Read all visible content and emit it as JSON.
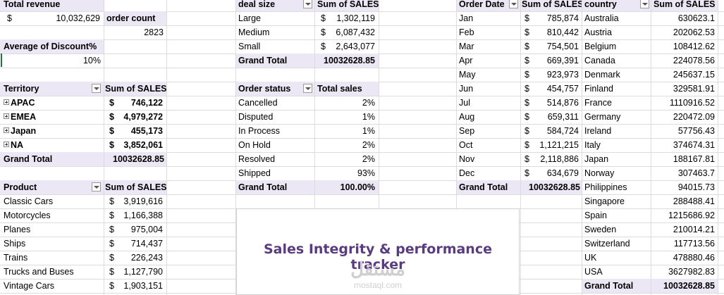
{
  "kpis": {
    "revenue_label": "Total revenue",
    "currency": "$",
    "revenue_value": "10,032,629",
    "order_count_label": "order count",
    "order_count_value": "2823",
    "discount_label": "Average of Discount%",
    "discount_value": "10%"
  },
  "territory": {
    "col1": "Territory",
    "col2": "Sum of SALES",
    "rows": [
      {
        "name": "APAC",
        "cur": "$",
        "value": "746,122"
      },
      {
        "name": "EMEA",
        "cur": "$",
        "value": "4,979,272"
      },
      {
        "name": "Japan",
        "cur": "$",
        "value": "455,173"
      },
      {
        "name": "NA",
        "cur": "$",
        "value": "3,852,061"
      }
    ],
    "total_label": "Grand Total",
    "total_value": "10032628.85"
  },
  "product": {
    "col1": "Product",
    "col2": "Sum of SALES",
    "rows": [
      {
        "name": "Classic Cars",
        "cur": "$",
        "value": "3,919,616"
      },
      {
        "name": "Motorcycles",
        "cur": "$",
        "value": "1,166,388"
      },
      {
        "name": "Planes",
        "cur": "$",
        "value": "975,004"
      },
      {
        "name": "Ships",
        "cur": "$",
        "value": "714,437"
      },
      {
        "name": "Trains",
        "cur": "$",
        "value": "226,243"
      },
      {
        "name": "Trucks and Buses",
        "cur": "$",
        "value": "1,127,790"
      },
      {
        "name": "Vintage Cars",
        "cur": "$",
        "value": "1,903,151"
      }
    ]
  },
  "deal_size": {
    "col1": "deal size",
    "col2": "Sum of SALES",
    "rows": [
      {
        "name": "Large",
        "cur": "$",
        "value": "1,302,119"
      },
      {
        "name": "Medium",
        "cur": "$",
        "value": "6,087,432"
      },
      {
        "name": "Small",
        "cur": "$",
        "value": "2,643,077"
      }
    ],
    "total_label": "Grand Total",
    "total_value": "10032628.85"
  },
  "order_status": {
    "col1": "Order status",
    "col2": "Total sales",
    "rows": [
      {
        "name": "Cancelled",
        "value": "2%"
      },
      {
        "name": "Disputed",
        "value": "1%"
      },
      {
        "name": "In Process",
        "value": "1%"
      },
      {
        "name": "On Hold",
        "value": "2%"
      },
      {
        "name": "Resolved",
        "value": "2%"
      },
      {
        "name": "Shipped",
        "value": "93%"
      }
    ],
    "total_label": "Grand Total",
    "total_value": "100.00%"
  },
  "order_date": {
    "col1": "Order Date",
    "col2": "Sum of SALES",
    "rows": [
      {
        "name": "Jan",
        "cur": "$",
        "value": "785,874"
      },
      {
        "name": "Feb",
        "cur": "$",
        "value": "810,442"
      },
      {
        "name": "Mar",
        "cur": "$",
        "value": "754,501"
      },
      {
        "name": "Apr",
        "cur": "$",
        "value": "669,391"
      },
      {
        "name": "May",
        "cur": "$",
        "value": "923,973"
      },
      {
        "name": "Jun",
        "cur": "$",
        "value": "454,757"
      },
      {
        "name": "Jul",
        "cur": "$",
        "value": "514,876"
      },
      {
        "name": "Aug",
        "cur": "$",
        "value": "659,311"
      },
      {
        "name": "Sep",
        "cur": "$",
        "value": "584,724"
      },
      {
        "name": "Oct",
        "cur": "$",
        "value": "1,121,215"
      },
      {
        "name": "Nov",
        "cur": "$",
        "value": "2,118,886"
      },
      {
        "name": "Dec",
        "cur": "$",
        "value": "634,679"
      }
    ],
    "total_label": "Grand Total",
    "total_value": "10032628.85"
  },
  "country": {
    "col1": "country",
    "col2": "Sum of SALES",
    "rows": [
      {
        "name": "Australia",
        "value": "630623.1"
      },
      {
        "name": "Austria",
        "value": "202062.53"
      },
      {
        "name": "Belgium",
        "value": "108412.62"
      },
      {
        "name": "Canada",
        "value": "224078.56"
      },
      {
        "name": "Denmark",
        "value": "245637.15"
      },
      {
        "name": "Finland",
        "value": "329581.91"
      },
      {
        "name": "France",
        "value": "1110916.52"
      },
      {
        "name": "Germany",
        "value": "220472.09"
      },
      {
        "name": "Ireland",
        "value": "57756.43"
      },
      {
        "name": "Italy",
        "value": "374674.31"
      },
      {
        "name": "Japan",
        "value": "188167.81"
      },
      {
        "name": "Norway",
        "value": "307463.7"
      },
      {
        "name": "Philippines",
        "value": "94015.73"
      },
      {
        "name": "Singapore",
        "value": "288488.41"
      },
      {
        "name": "Spain",
        "value": "1215686.92"
      },
      {
        "name": "Sweden",
        "value": "210014.21"
      },
      {
        "name": "Switzerland",
        "value": "117713.56"
      },
      {
        "name": "UK",
        "value": "478880.46"
      },
      {
        "name": "USA",
        "value": "3627982.83"
      }
    ],
    "total_label": "Grand Total",
    "total_value": "10032628.85"
  },
  "title_box": {
    "title": "Sales Integrity & performance tracker",
    "watermark": "مستقل",
    "watermark_sub": "mostaql.com"
  },
  "colors": {
    "header_bg": "#ece7f4",
    "title_text": "#5b3b80",
    "gridline": "#dadcdf",
    "selection": "#217346"
  }
}
